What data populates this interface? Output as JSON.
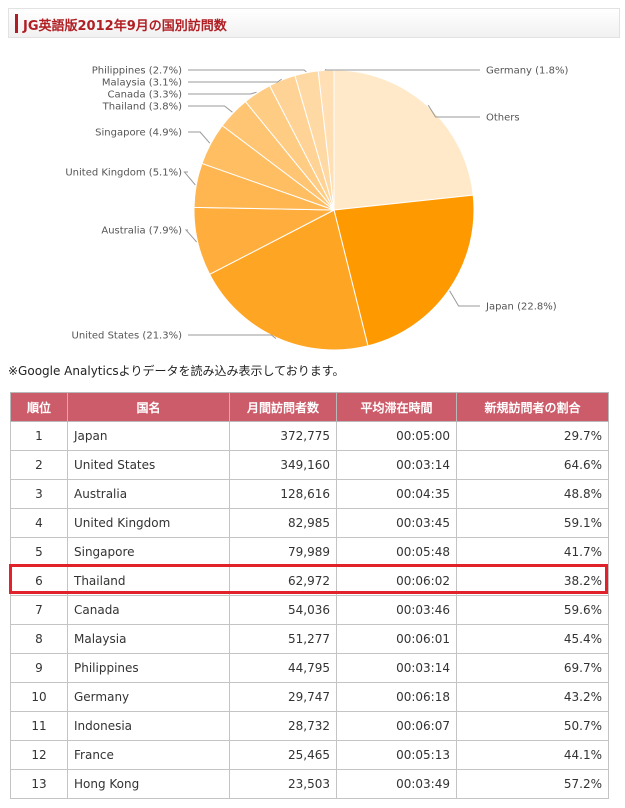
{
  "header": {
    "title": "JG英語版2012年9月の国別訪問数"
  },
  "note": "※Google Analyticsよりデータを読み込み表示しております。",
  "chart_data": {
    "type": "pie",
    "title": "",
    "slices": [
      {
        "label": "Japan (22.8%)",
        "value": 22.8,
        "color": "#ff9900"
      },
      {
        "label": "United States (21.3%)",
        "value": 21.3,
        "color": "#ffa524"
      },
      {
        "label": "Australia (7.9%)",
        "value": 7.9,
        "color": "#ffae3d"
      },
      {
        "label": "United Kingdom (5.1%)",
        "value": 5.1,
        "color": "#ffb651"
      },
      {
        "label": "Singapore (4.9%)",
        "value": 4.9,
        "color": "#ffbe62"
      },
      {
        "label": "Thailand (3.8%)",
        "value": 3.8,
        "color": "#ffc573"
      },
      {
        "label": "Canada (3.3%)",
        "value": 3.3,
        "color": "#ffcc84"
      },
      {
        "label": "Malaysia (3.1%)",
        "value": 3.1,
        "color": "#ffd395"
      },
      {
        "label": "Philippines (2.7%)",
        "value": 2.7,
        "color": "#ffd9a4"
      },
      {
        "label": "Germany (1.8%)",
        "value": 1.8,
        "color": "#ffdfb3"
      },
      {
        "label": "Others",
        "value": 23.3,
        "color": "#ffe9c9"
      }
    ]
  },
  "table": {
    "headers": [
      "順位",
      "国名",
      "月間訪問者数",
      "平均滞在時間",
      "新規訪問者の割合"
    ],
    "rows": [
      [
        "1",
        "Japan",
        "372,775",
        "00:05:00",
        "29.7%"
      ],
      [
        "2",
        "United States",
        "349,160",
        "00:03:14",
        "64.6%"
      ],
      [
        "3",
        "Australia",
        "128,616",
        "00:04:35",
        "48.8%"
      ],
      [
        "4",
        "United Kingdom",
        "82,985",
        "00:03:45",
        "59.1%"
      ],
      [
        "5",
        "Singapore",
        "79,989",
        "00:05:48",
        "41.7%"
      ],
      [
        "6",
        "Thailand",
        "62,972",
        "00:06:02",
        "38.2%"
      ],
      [
        "7",
        "Canada",
        "54,036",
        "00:03:46",
        "59.6%"
      ],
      [
        "8",
        "Malaysia",
        "51,277",
        "00:06:01",
        "45.4%"
      ],
      [
        "9",
        "Philippines",
        "44,795",
        "00:03:14",
        "69.7%"
      ],
      [
        "10",
        "Germany",
        "29,747",
        "00:06:18",
        "43.2%"
      ],
      [
        "11",
        "Indonesia",
        "28,732",
        "00:06:07",
        "50.7%"
      ],
      [
        "12",
        "France",
        "25,465",
        "00:05:13",
        "44.1%"
      ],
      [
        "13",
        "Hong Kong",
        "23,503",
        "00:03:49",
        "57.2%"
      ]
    ],
    "highlight_rank": "6"
  }
}
